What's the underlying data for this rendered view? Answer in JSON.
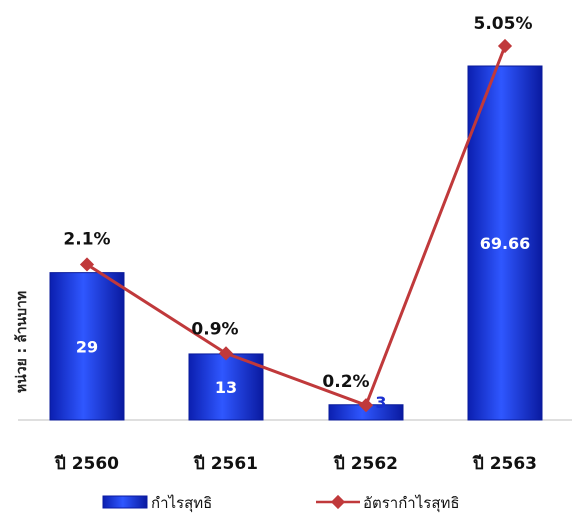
{
  "chart_data": {
    "type": "bar",
    "ylabel": "หน่วย : ล้านบาท",
    "categories": [
      "ปี 2560",
      "ปี 2561",
      "ปี 2562",
      "ปี 2563"
    ],
    "series": [
      {
        "name": "กำไรสุทธิ",
        "type": "bar",
        "values": [
          29,
          13,
          3,
          69.66
        ],
        "labels": [
          "29",
          "13",
          "3",
          "69.66"
        ],
        "color": "#1a3be0"
      },
      {
        "name": "อัตรากำไรสุทธิ",
        "type": "line",
        "values": [
          2.1,
          0.9,
          0.2,
          5.05
        ],
        "labels": [
          "2.1%",
          "0.9%",
          "0.2%",
          "5.05%"
        ],
        "color": "#c0393b"
      }
    ],
    "legend_position": "bottom",
    "grid": false
  }
}
